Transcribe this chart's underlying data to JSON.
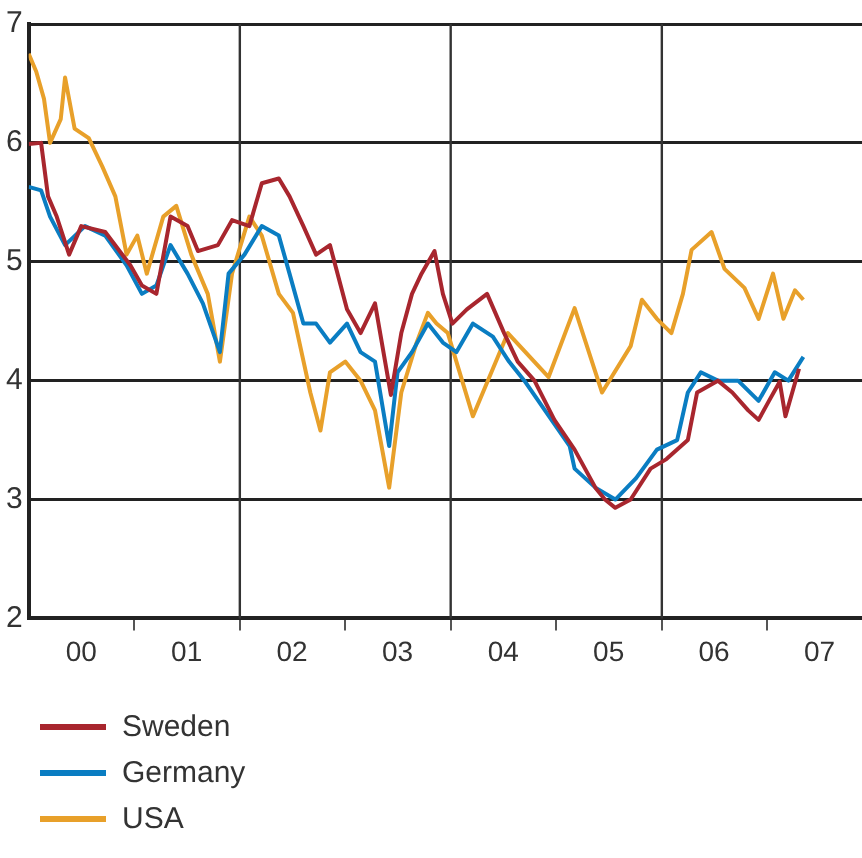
{
  "chart_data": {
    "type": "line",
    "xlim": [
      "2000-01-01",
      "2007-11-25"
    ],
    "ylim": [
      2,
      7
    ],
    "yticks": [
      2,
      3,
      4,
      5,
      6,
      7
    ],
    "xticks": [
      {
        "value": "2000-07-01",
        "label": "00"
      },
      {
        "value": "2001-01-01",
        "label": null
      },
      {
        "value": "2001-07-01",
        "label": "01"
      },
      {
        "value": "2002-01-01",
        "label": null
      },
      {
        "value": "2002-07-01",
        "label": "02"
      },
      {
        "value": "2003-01-01",
        "label": null
      },
      {
        "value": "2003-07-01",
        "label": "03"
      },
      {
        "value": "2004-01-01",
        "label": null
      },
      {
        "value": "2004-07-01",
        "label": "04"
      },
      {
        "value": "2005-01-01",
        "label": null
      },
      {
        "value": "2005-07-01",
        "label": "05"
      },
      {
        "value": "2006-01-01",
        "label": null
      },
      {
        "value": "2006-07-01",
        "label": "06"
      },
      {
        "value": "2007-01-01",
        "label": null
      },
      {
        "value": "2007-07-01",
        "label": "07"
      }
    ],
    "grid": "y",
    "legend": "bottom",
    "marker": "none",
    "line_style": "solid",
    "ref_lines": [
      {
        "axis": "x",
        "value": "2002-01-01",
        "color": "#333333"
      },
      {
        "axis": "x",
        "value": "2004-01-01",
        "color": "#333333"
      },
      {
        "axis": "x",
        "value": "2006-01-01",
        "color": "#333333"
      }
    ],
    "series": [
      {
        "name": "Sweden",
        "color": "#a8262e",
        "x": [
          "2000-01-01",
          "2000-02-13",
          "2000-03-08",
          "2000-04-07",
          "2000-05-20",
          "2000-07-01",
          "2000-09-22",
          "2000-12-18",
          "2001-01-27",
          "2001-03-18",
          "2001-05-06",
          "2001-07-04",
          "2001-08-09",
          "2001-10-17",
          "2001-12-05",
          "2002-02-03",
          "2002-03-18",
          "2002-05-16",
          "2002-06-22",
          "2002-08-09",
          "2002-09-22",
          "2002-11-09",
          "2003-01-07",
          "2003-02-23",
          "2003-04-14",
          "2003-06-08",
          "2003-07-14",
          "2003-08-20",
          "2003-09-22",
          "2003-11-06",
          "2003-12-05",
          "2004-01-07",
          "2004-02-26",
          "2004-05-06",
          "2004-07-04",
          "2004-08-20",
          "2004-10-17",
          "2004-12-25",
          "2005-03-05",
          "2005-05-16",
          "2005-06-18",
          "2005-07-24",
          "2005-09-15",
          "2005-11-23",
          "2006-01-17",
          "2006-04-01",
          "2006-05-03",
          "2006-07-14",
          "2006-09-02",
          "2006-10-27",
          "2006-12-02",
          "2007-01-07",
          "2007-02-13",
          "2007-03-05",
          "2007-04-21"
        ],
        "values": [
          5.99,
          6.0,
          5.55,
          5.38,
          5.06,
          5.3,
          5.25,
          4.97,
          4.8,
          4.73,
          5.38,
          5.3,
          5.09,
          5.14,
          5.35,
          5.3,
          5.66,
          5.7,
          5.55,
          5.3,
          5.06,
          5.14,
          4.6,
          4.4,
          4.65,
          3.88,
          4.4,
          4.73,
          4.9,
          5.09,
          4.73,
          4.48,
          4.6,
          4.73,
          4.4,
          4.16,
          4.0,
          3.67,
          3.42,
          3.1,
          3.0,
          2.93,
          3.0,
          3.26,
          3.34,
          3.5,
          3.9,
          4.0,
          3.9,
          3.75,
          3.67,
          3.83,
          3.99,
          3.7,
          4.1
        ]
      },
      {
        "name": "Germany",
        "color": "#0a7dc2",
        "x": [
          "2000-01-01",
          "2000-02-13",
          "2000-03-15",
          "2000-05-06",
          "2000-07-14",
          "2000-09-22",
          "2000-12-05",
          "2001-01-27",
          "2001-03-18",
          "2001-05-06",
          "2001-07-04",
          "2001-08-26",
          "2001-10-24",
          "2001-11-23",
          "2002-01-17",
          "2002-03-18",
          "2002-05-16",
          "2002-06-22",
          "2002-08-09",
          "2002-09-22",
          "2002-11-09",
          "2003-01-07",
          "2003-02-23",
          "2003-04-14",
          "2003-06-02",
          "2003-07-01",
          "2003-08-20",
          "2003-10-14",
          "2003-12-05",
          "2004-01-21",
          "2004-03-18",
          "2004-05-26",
          "2004-07-21",
          "2004-09-12",
          "2005-02-16",
          "2005-03-05",
          "2005-05-16",
          "2005-07-24",
          "2005-10-04",
          "2005-12-15",
          "2006-02-23",
          "2006-04-01",
          "2006-05-16",
          "2006-07-14",
          "2006-09-22",
          "2006-12-02",
          "2007-01-27",
          "2007-03-15",
          "2007-05-06"
        ],
        "values": [
          5.63,
          5.6,
          5.38,
          5.14,
          5.3,
          5.22,
          4.97,
          4.73,
          4.8,
          5.14,
          4.9,
          4.65,
          4.24,
          4.9,
          5.06,
          5.3,
          5.22,
          4.9,
          4.48,
          4.48,
          4.32,
          4.48,
          4.24,
          4.16,
          3.45,
          4.07,
          4.24,
          4.48,
          4.32,
          4.24,
          4.48,
          4.37,
          4.16,
          4.0,
          3.45,
          3.26,
          3.1,
          3.0,
          3.18,
          3.42,
          3.5,
          3.9,
          4.07,
          4.0,
          4.0,
          3.83,
          4.07,
          4.0,
          4.2
        ]
      },
      {
        "name": "USA",
        "color": "#e8a02a",
        "x": [
          "2000-01-01",
          "2000-01-27",
          "2000-02-23",
          "2000-03-15",
          "2000-04-21",
          "2000-05-06",
          "2000-06-08",
          "2000-07-27",
          "2000-09-12",
          "2000-10-27",
          "2000-12-05",
          "2001-01-11",
          "2001-02-13",
          "2001-04-11",
          "2001-05-26",
          "2001-07-17",
          "2001-09-12",
          "2001-10-24",
          "2001-12-05",
          "2002-02-03",
          "2002-03-18",
          "2002-05-16",
          "2002-07-04",
          "2002-09-02",
          "2002-10-07",
          "2002-11-09",
          "2003-01-01",
          "2003-02-23",
          "2003-04-14",
          "2003-06-02",
          "2003-07-14",
          "2003-09-05",
          "2003-10-14",
          "2003-11-13",
          "2003-12-22",
          "2004-03-18",
          "2004-07-17",
          "2004-12-05",
          "2005-03-05",
          "2005-06-08",
          "2005-09-15",
          "2005-10-24",
          "2005-12-15",
          "2006-02-03",
          "2006-03-15",
          "2006-04-14",
          "2006-06-22",
          "2006-08-06",
          "2006-10-14",
          "2006-12-02",
          "2007-01-21",
          "2007-02-26",
          "2007-04-07",
          "2007-05-06"
        ],
        "values": [
          6.75,
          6.6,
          6.37,
          6.0,
          6.2,
          6.55,
          6.12,
          6.04,
          5.8,
          5.55,
          5.06,
          5.22,
          4.9,
          5.38,
          5.47,
          5.06,
          4.73,
          4.16,
          4.9,
          5.38,
          5.22,
          4.73,
          4.57,
          3.9,
          3.58,
          4.07,
          4.16,
          4.0,
          3.75,
          3.1,
          3.9,
          4.32,
          4.57,
          4.48,
          4.4,
          3.7,
          4.4,
          4.03,
          4.61,
          3.9,
          4.29,
          4.68,
          4.52,
          4.4,
          4.73,
          5.1,
          5.25,
          4.94,
          4.78,
          4.52,
          4.9,
          4.52,
          4.76,
          4.68
        ]
      }
    ]
  }
}
